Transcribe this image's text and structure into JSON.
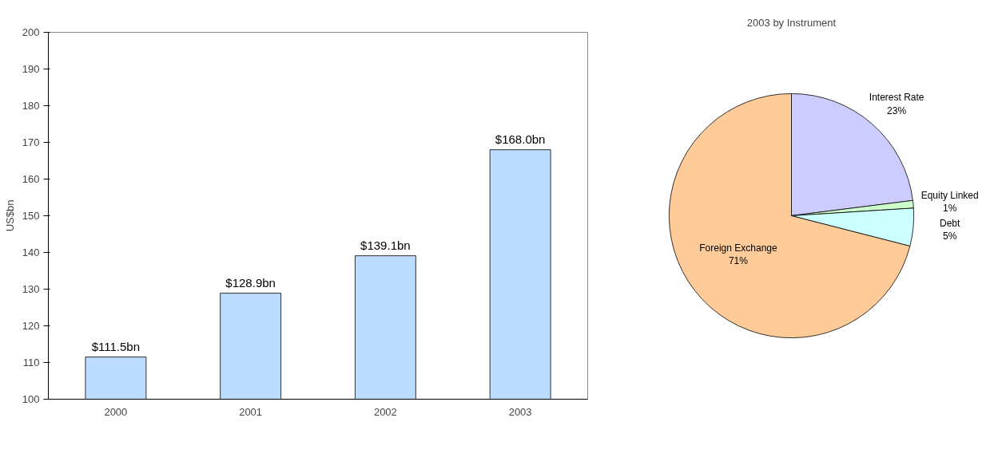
{
  "chart_data": [
    {
      "type": "bar",
      "categories": [
        "2000",
        "2001",
        "2002",
        "2003"
      ],
      "ylabel": "US$bn",
      "values": [
        111.5,
        128.9,
        139.1,
        168.0
      ],
      "color": "#bcdcff",
      "value_labels": [
        "$111.5bn",
        "$128.9bn",
        "$139.1bn",
        "$168.0bn"
      ],
      "ylim": [
        100,
        200
      ],
      "yticks": [
        100,
        110,
        120,
        130,
        140,
        150,
        160,
        170,
        180,
        190,
        200
      ],
      "grid": false
    },
    {
      "type": "pie",
      "title": "2003 by Instrument",
      "categories": [
        "Interest Rate",
        "Equity Linked",
        "Debt",
        "Foreign Exchange"
      ],
      "values": [
        23,
        1,
        5,
        71
      ],
      "colors": [
        "#ccccff",
        "#ccffcc",
        "#ccffff",
        "#ffcc99"
      ],
      "value_labels": [
        "23%",
        "1%",
        "5%",
        "71%"
      ]
    }
  ]
}
